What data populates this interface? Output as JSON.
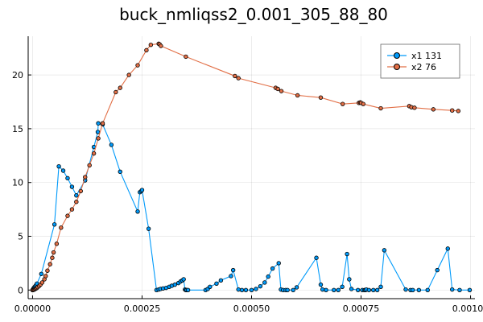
{
  "chart_data": {
    "type": "line",
    "title": "buck_nmliqss2_0.001_305_88_80",
    "xlabel": "",
    "ylabel": "",
    "xlim": [
      -1e-05,
      0.00101
    ],
    "ylim": [
      -0.8,
      23.6
    ],
    "x_ticks": [
      0,
      0.00025,
      0.0005,
      0.00075,
      0.001
    ],
    "x_tick_labels": [
      "0.00000",
      "0.00025",
      "0.00050",
      "0.00075",
      "0.00100"
    ],
    "y_ticks": [
      0,
      5,
      10,
      15,
      20
    ],
    "y_tick_labels": [
      "0",
      "5",
      "10",
      "15",
      "20"
    ],
    "grid": true,
    "legend_position": "top-right",
    "series": [
      {
        "name": "x1 131",
        "color": "#009AFA",
        "x": [
          0,
          2e-06,
          4e-06,
          6e-06,
          8e-06,
          1e-05,
          2e-05,
          5e-05,
          6e-05,
          7e-05,
          8e-05,
          9e-05,
          0.0001,
          0.00012,
          0.00014,
          0.000149,
          0.00015,
          0.00016,
          0.00018,
          0.0002,
          0.00024,
          0.000245,
          0.000248,
          0.00025,
          0.000265,
          0.000283,
          0.000288,
          0.000292,
          0.000298,
          0.000305,
          0.000312,
          0.000318,
          0.000325,
          0.000333,
          0.000338,
          0.000342,
          0.000345,
          0.000348,
          0.00035,
          0.000352,
          0.000355,
          0.000395,
          0.0004,
          0.000405,
          0.00042,
          0.00043,
          0.000453,
          0.000458,
          0.00047,
          0.000478,
          0.000487,
          0.0005,
          0.00051,
          0.00052,
          0.00053,
          0.000538,
          0.000548,
          0.000562,
          0.000567,
          0.000572,
          0.000578,
          0.000582,
          0.000595,
          0.000603,
          0.000648,
          0.000658,
          0.000662,
          0.00067,
          0.000688,
          0.000698,
          0.000707,
          0.000718,
          0.000723,
          0.000728,
          0.000743,
          0.000753,
          0.000758,
          0.00076,
          0.000762,
          0.000768,
          0.000778,
          0.000787,
          0.000795,
          0.000803,
          0.000852,
          0.000863,
          0.000868,
          0.000882,
          0.000902,
          0.000924,
          0.000948,
          0.000958,
          0.000975,
          0.000998
        ],
        "y": [
          0,
          0.15,
          0.25,
          0.35,
          0.45,
          0.6,
          1.5,
          6.1,
          11.5,
          11.1,
          10.4,
          9.6,
          8.8,
          10.2,
          13.3,
          14.7,
          15.5,
          15.4,
          13.5,
          11.0,
          7.3,
          9.1,
          9.2,
          9.3,
          5.7,
          0.0,
          0.05,
          0.1,
          0.15,
          0.2,
          0.3,
          0.4,
          0.5,
          0.65,
          0.8,
          0.9,
          1.0,
          0.05,
          0.0,
          0.0,
          0.0,
          0.0,
          0.1,
          0.3,
          0.6,
          0.9,
          1.3,
          1.85,
          0.05,
          0.0,
          0.0,
          0.0,
          0.1,
          0.35,
          0.7,
          1.25,
          2.0,
          2.5,
          0.05,
          0.0,
          0.0,
          0.0,
          0.0,
          0.25,
          3.0,
          0.5,
          0.05,
          0.0,
          0.0,
          0.0,
          0.3,
          3.35,
          1.0,
          0.1,
          0.0,
          0.0,
          0.0,
          0.0,
          0.05,
          0.0,
          0.0,
          0.0,
          0.3,
          3.7,
          0.05,
          0.0,
          0.0,
          0.0,
          0.0,
          1.85,
          3.85,
          0.05,
          0.0,
          0.0
        ]
      },
      {
        "name": "x2 76",
        "color": "#E26F46",
        "x": [
          0,
          2e-06,
          4e-06,
          6e-06,
          8e-06,
          1e-05,
          1.2e-05,
          1.5e-05,
          1.8e-05,
          2.2e-05,
          2.7e-05,
          3e-05,
          3.4e-05,
          4e-05,
          4.5e-05,
          4.8e-05,
          5.5e-05,
          6.5e-05,
          8e-05,
          9e-05,
          0.0001,
          0.00011,
          0.00012,
          0.00013,
          0.00014,
          0.00015,
          0.00016,
          0.00019,
          0.0002,
          0.00022,
          0.00024,
          0.00026,
          0.00027,
          0.000288,
          0.00029,
          0.000293,
          0.00035,
          0.000462,
          0.00047,
          0.000555,
          0.00056,
          0.000568,
          0.000605,
          0.000658,
          0.000708,
          0.000745,
          0.000748,
          0.00075,
          0.000755,
          0.000795,
          0.00086,
          0.000865,
          0.000872,
          0.000915,
          0.000958,
          0.000972
        ],
        "y": [
          0,
          0.02,
          0.05,
          0.1,
          0.15,
          0.2,
          0.28,
          0.38,
          0.5,
          0.7,
          1.0,
          1.3,
          1.8,
          2.4,
          3.0,
          3.5,
          4.3,
          5.8,
          6.9,
          7.5,
          8.2,
          9.2,
          10.5,
          11.6,
          12.7,
          14.1,
          15.5,
          18.4,
          18.8,
          20.0,
          20.9,
          22.3,
          22.8,
          22.9,
          22.85,
          22.7,
          21.7,
          19.9,
          19.7,
          18.8,
          18.7,
          18.5,
          18.1,
          17.9,
          17.3,
          17.4,
          17.45,
          17.4,
          17.3,
          16.9,
          17.1,
          17.0,
          16.95,
          16.8,
          16.7,
          16.65
        ]
      }
    ]
  }
}
